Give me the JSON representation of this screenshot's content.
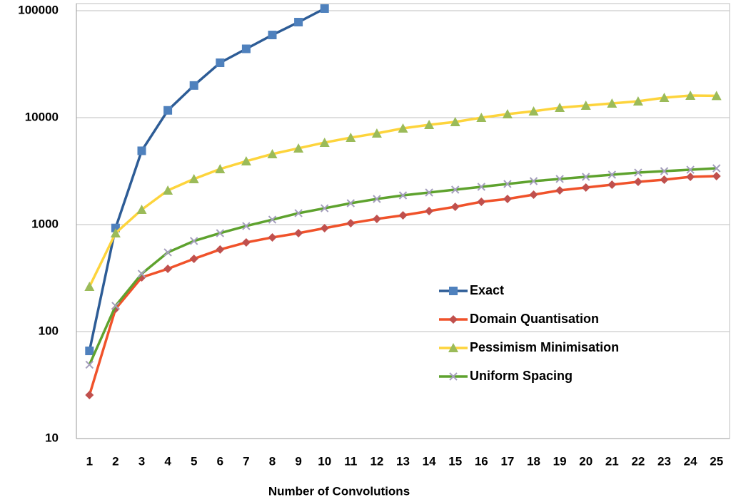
{
  "chart_data": {
    "type": "line",
    "x_label": "Number of Convolutions",
    "categories": [
      "1",
      "2",
      "3",
      "4",
      "5",
      "6",
      "7",
      "8",
      "9",
      "10",
      "11",
      "12",
      "13",
      "14",
      "15",
      "16",
      "17",
      "18",
      "19",
      "20",
      "21",
      "22",
      "23",
      "24",
      "25"
    ],
    "ylim": [
      10,
      100000
    ],
    "yticks": [
      10,
      100,
      1000,
      10000,
      100000
    ],
    "log_scale": true,
    "grid": true,
    "legend": "right",
    "series": [
      {
        "name": "Exact",
        "color": "#2d5c96",
        "marker_color": "#4f81bd",
        "marker": "square",
        "values": [
          66,
          930,
          4900,
          11700,
          20000,
          32600,
          44000,
          59300,
          78200,
          104700,
          null,
          null,
          null,
          null,
          null,
          null,
          null,
          null,
          null,
          null,
          null,
          null,
          null,
          null,
          null
        ]
      },
      {
        "name": "Domain Quantisation",
        "color": "#f0522a",
        "marker_color": "#c0504d",
        "marker": "diamond",
        "values": [
          25.5,
          163,
          321,
          386,
          479,
          585,
          681,
          759,
          832,
          926,
          1031,
          1130,
          1221,
          1339,
          1468,
          1634,
          1738,
          1905,
          2089,
          2223,
          2363,
          2512,
          2630,
          2797,
          2840
        ]
      },
      {
        "name": "Pessimism Minimisation",
        "color": "#fdd43c",
        "marker_color": "#9bbb59",
        "marker": "triangle",
        "values": [
          263,
          832,
          1380,
          2089,
          2673,
          3311,
          3917,
          4571,
          5170,
          5848,
          6505,
          7134,
          7943,
          8577,
          9120,
          10000,
          10800,
          11480,
          12400,
          12980,
          13600,
          14230,
          15380,
          16100,
          16000
        ]
      },
      {
        "name": "Uniform Spacing",
        "color": "#5ea22e",
        "marker_color": "#a59fbd",
        "marker": "x",
        "values": [
          49,
          174,
          347,
          550,
          703,
          832,
          970,
          1113,
          1279,
          1422,
          1585,
          1738,
          1876,
          1995,
          2122,
          2256,
          2399,
          2551,
          2673,
          2797,
          2929,
          3065,
          3162,
          3258,
          3362
        ]
      }
    ]
  }
}
